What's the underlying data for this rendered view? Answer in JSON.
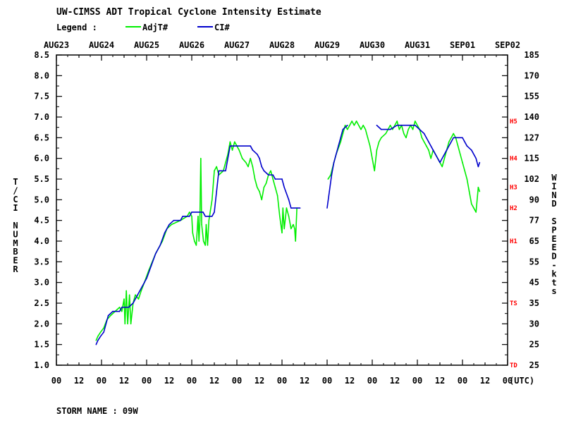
{
  "header": {
    "title": "UW-CIMSS ADT Tropical Cyclone Intensity Estimate",
    "legend_label": "Legend :",
    "storm_name": "STORM NAME : 09W"
  },
  "chart_data": {
    "type": "line",
    "title": "UW-CIMSS ADT Tropical Cyclone Intensity Estimate",
    "xlabel": "",
    "x_unit_label": "(UTC)",
    "ylabel": "T/CI NUMBER",
    "y2label": "WIND SPEED-kts",
    "x_unit": "days since AUG23 00 UTC",
    "xlim": [
      0,
      10
    ],
    "ylim": [
      1.0,
      8.5
    ],
    "date_labels": [
      "AUG23",
      "AUG24",
      "AUG25",
      "AUG26",
      "AUG27",
      "AUG28",
      "AUG29",
      "AUG30",
      "AUG31",
      "SEP01",
      "SEP02"
    ],
    "hour_labels": [
      "00",
      "12",
      "00",
      "12",
      "00",
      "12",
      "00",
      "12",
      "00",
      "12",
      "00",
      "12",
      "00",
      "12",
      "00",
      "12",
      "00",
      "12",
      "00",
      "12",
      "00"
    ],
    "y_ticks": [
      "1.0",
      "1.5",
      "2.0",
      "2.5",
      "3.0",
      "3.5",
      "4.0",
      "4.5",
      "5.0",
      "5.5",
      "6.0",
      "6.5",
      "7.0",
      "7.5",
      "8.0",
      "8.5"
    ],
    "wind_ticks": [
      "25",
      "25",
      "30",
      "35",
      "45",
      "55",
      "65",
      "77",
      "90",
      "102",
      "115",
      "127",
      "140",
      "155",
      "170",
      "185"
    ],
    "categories_right": [
      {
        "label": "TD",
        "y": 1.0
      },
      {
        "label": "TS",
        "y": 2.5
      },
      {
        "label": "H1",
        "y": 4.0
      },
      {
        "label": "H2",
        "y": 4.8
      },
      {
        "label": "H3",
        "y": 5.3
      },
      {
        "label": "H4",
        "y": 6.0
      },
      {
        "label": "H5",
        "y": 6.9
      }
    ],
    "grid": false,
    "legend": "top-left",
    "series": [
      {
        "name": "AdjT#",
        "color": "#00ee00",
        "points": [
          [
            0.88,
            1.6
          ],
          [
            0.92,
            1.7
          ],
          [
            0.98,
            1.8
          ],
          [
            1.05,
            1.9
          ],
          [
            1.12,
            2.1
          ],
          [
            1.2,
            2.2
          ],
          [
            1.3,
            2.3
          ],
          [
            1.4,
            2.4
          ],
          [
            1.45,
            2.3
          ],
          [
            1.5,
            2.6
          ],
          [
            1.52,
            2.0
          ],
          [
            1.55,
            2.8
          ],
          [
            1.58,
            2.0
          ],
          [
            1.62,
            2.7
          ],
          [
            1.65,
            2.0
          ],
          [
            1.7,
            2.5
          ],
          [
            1.75,
            2.7
          ],
          [
            1.82,
            2.6
          ],
          [
            1.88,
            2.8
          ],
          [
            1.95,
            3.0
          ],
          [
            2.05,
            3.3
          ],
          [
            2.2,
            3.7
          ],
          [
            2.35,
            4.0
          ],
          [
            2.45,
            4.3
          ],
          [
            2.55,
            4.4
          ],
          [
            2.75,
            4.5
          ],
          [
            2.9,
            4.6
          ],
          [
            2.95,
            4.7
          ],
          [
            3.0,
            4.6
          ],
          [
            3.02,
            4.2
          ],
          [
            3.06,
            4.0
          ],
          [
            3.1,
            3.9
          ],
          [
            3.14,
            4.6
          ],
          [
            3.16,
            4.0
          ],
          [
            3.18,
            4.5
          ],
          [
            3.2,
            6.0
          ],
          [
            3.22,
            4.4
          ],
          [
            3.26,
            4.0
          ],
          [
            3.3,
            3.9
          ],
          [
            3.32,
            4.4
          ],
          [
            3.35,
            3.9
          ],
          [
            3.38,
            4.5
          ],
          [
            3.45,
            5.0
          ],
          [
            3.5,
            5.7
          ],
          [
            3.55,
            5.8
          ],
          [
            3.6,
            5.6
          ],
          [
            3.7,
            5.7
          ],
          [
            3.8,
            6.1
          ],
          [
            3.85,
            6.4
          ],
          [
            3.9,
            6.2
          ],
          [
            3.95,
            6.4
          ],
          [
            4.0,
            6.3
          ],
          [
            4.05,
            6.2
          ],
          [
            4.12,
            6.0
          ],
          [
            4.2,
            5.9
          ],
          [
            4.25,
            5.8
          ],
          [
            4.3,
            6.0
          ],
          [
            4.35,
            5.8
          ],
          [
            4.4,
            5.5
          ],
          [
            4.45,
            5.3
          ],
          [
            4.5,
            5.2
          ],
          [
            4.55,
            5.0
          ],
          [
            4.6,
            5.3
          ],
          [
            4.65,
            5.4
          ],
          [
            4.7,
            5.6
          ],
          [
            4.75,
            5.7
          ],
          [
            4.8,
            5.5
          ],
          [
            4.85,
            5.3
          ],
          [
            4.9,
            5.1
          ],
          [
            4.95,
            4.6
          ],
          [
            5.0,
            4.2
          ],
          [
            5.02,
            4.8
          ],
          [
            5.05,
            4.3
          ],
          [
            5.1,
            4.8
          ],
          [
            5.15,
            4.6
          ],
          [
            5.2,
            4.3
          ],
          [
            5.25,
            4.4
          ],
          [
            5.28,
            4.3
          ],
          [
            5.3,
            4.0
          ],
          [
            5.33,
            4.8
          ],
          [
            6.02,
            5.5
          ],
          [
            6.08,
            5.6
          ],
          [
            6.15,
            5.9
          ],
          [
            6.2,
            6.1
          ],
          [
            6.3,
            6.4
          ],
          [
            6.35,
            6.6
          ],
          [
            6.4,
            6.8
          ],
          [
            6.45,
            6.7
          ],
          [
            6.5,
            6.8
          ],
          [
            6.55,
            6.9
          ],
          [
            6.6,
            6.8
          ],
          [
            6.65,
            6.9
          ],
          [
            6.7,
            6.8
          ],
          [
            6.75,
            6.7
          ],
          [
            6.8,
            6.8
          ],
          [
            6.85,
            6.7
          ],
          [
            6.9,
            6.5
          ],
          [
            6.95,
            6.3
          ],
          [
            7.0,
            6.0
          ],
          [
            7.05,
            5.7
          ],
          [
            7.1,
            6.2
          ],
          [
            7.15,
            6.4
          ],
          [
            7.2,
            6.5
          ],
          [
            7.3,
            6.6
          ],
          [
            7.35,
            6.7
          ],
          [
            7.4,
            6.8
          ],
          [
            7.45,
            6.7
          ],
          [
            7.5,
            6.8
          ],
          [
            7.55,
            6.9
          ],
          [
            7.6,
            6.7
          ],
          [
            7.65,
            6.8
          ],
          [
            7.7,
            6.6
          ],
          [
            7.75,
            6.5
          ],
          [
            7.8,
            6.7
          ],
          [
            7.85,
            6.8
          ],
          [
            7.9,
            6.7
          ],
          [
            7.95,
            6.9
          ],
          [
            8.0,
            6.8
          ],
          [
            8.05,
            6.7
          ],
          [
            8.1,
            6.5
          ],
          [
            8.15,
            6.4
          ],
          [
            8.2,
            6.3
          ],
          [
            8.25,
            6.2
          ],
          [
            8.3,
            6.0
          ],
          [
            8.35,
            6.2
          ],
          [
            8.4,
            6.1
          ],
          [
            8.45,
            6.0
          ],
          [
            8.5,
            5.9
          ],
          [
            8.55,
            5.8
          ],
          [
            8.6,
            6.0
          ],
          [
            8.65,
            6.2
          ],
          [
            8.7,
            6.4
          ],
          [
            8.75,
            6.5
          ],
          [
            8.8,
            6.6
          ],
          [
            8.85,
            6.5
          ],
          [
            8.9,
            6.3
          ],
          [
            8.95,
            6.1
          ],
          [
            9.0,
            5.9
          ],
          [
            9.05,
            5.7
          ],
          [
            9.1,
            5.5
          ],
          [
            9.15,
            5.2
          ],
          [
            9.2,
            4.9
          ],
          [
            9.25,
            4.8
          ],
          [
            9.3,
            4.7
          ],
          [
            9.35,
            5.3
          ],
          [
            9.38,
            5.2
          ]
        ]
      },
      {
        "name": "CI#",
        "color": "#0000cc",
        "points": [
          [
            0.88,
            1.5
          ],
          [
            0.92,
            1.6
          ],
          [
            0.98,
            1.7
          ],
          [
            1.05,
            1.8
          ],
          [
            1.1,
            2.0
          ],
          [
            1.15,
            2.2
          ],
          [
            1.25,
            2.3
          ],
          [
            1.4,
            2.3
          ],
          [
            1.45,
            2.4
          ],
          [
            1.6,
            2.4
          ],
          [
            1.7,
            2.5
          ],
          [
            1.8,
            2.7
          ],
          [
            1.9,
            2.9
          ],
          [
            2.0,
            3.1
          ],
          [
            2.1,
            3.4
          ],
          [
            2.2,
            3.7
          ],
          [
            2.3,
            3.9
          ],
          [
            2.4,
            4.2
          ],
          [
            2.5,
            4.4
          ],
          [
            2.6,
            4.5
          ],
          [
            2.75,
            4.5
          ],
          [
            2.8,
            4.6
          ],
          [
            2.95,
            4.6
          ],
          [
            3.0,
            4.7
          ],
          [
            3.25,
            4.7
          ],
          [
            3.3,
            4.6
          ],
          [
            3.45,
            4.6
          ],
          [
            3.5,
            4.7
          ],
          [
            3.55,
            5.2
          ],
          [
            3.6,
            5.7
          ],
          [
            3.75,
            5.7
          ],
          [
            3.8,
            6.0
          ],
          [
            3.85,
            6.3
          ],
          [
            4.3,
            6.3
          ],
          [
            4.35,
            6.2
          ],
          [
            4.45,
            6.1
          ],
          [
            4.5,
            6.0
          ],
          [
            4.55,
            5.8
          ],
          [
            4.6,
            5.7
          ],
          [
            4.7,
            5.6
          ],
          [
            4.8,
            5.6
          ],
          [
            4.85,
            5.5
          ],
          [
            5.0,
            5.5
          ],
          [
            5.05,
            5.3
          ],
          [
            5.15,
            5.0
          ],
          [
            5.2,
            4.8
          ],
          [
            5.4,
            4.8
          ],
          [
            6.0,
            4.8
          ],
          [
            6.05,
            5.2
          ],
          [
            6.1,
            5.6
          ],
          [
            6.15,
            5.9
          ],
          [
            6.2,
            6.1
          ],
          [
            6.25,
            6.3
          ],
          [
            6.3,
            6.5
          ],
          [
            6.35,
            6.7
          ],
          [
            6.45,
            6.8
          ],
          [
            7.1,
            6.8
          ],
          [
            7.2,
            6.7
          ],
          [
            7.4,
            6.7
          ],
          [
            7.55,
            6.8
          ],
          [
            7.65,
            6.8
          ],
          [
            7.95,
            6.8
          ],
          [
            8.05,
            6.7
          ],
          [
            8.15,
            6.6
          ],
          [
            8.25,
            6.4
          ],
          [
            8.35,
            6.2
          ],
          [
            8.45,
            6.0
          ],
          [
            8.5,
            5.9
          ],
          [
            8.65,
            6.2
          ],
          [
            8.75,
            6.4
          ],
          [
            8.8,
            6.5
          ],
          [
            9.0,
            6.5
          ],
          [
            9.05,
            6.4
          ],
          [
            9.1,
            6.3
          ],
          [
            9.2,
            6.2
          ],
          [
            9.3,
            6.0
          ],
          [
            9.35,
            5.8
          ],
          [
            9.38,
            5.9
          ]
        ]
      }
    ]
  }
}
